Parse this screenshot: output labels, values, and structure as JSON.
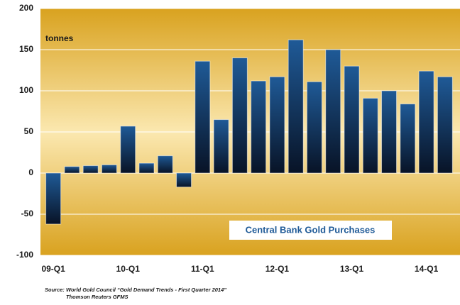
{
  "chart_data": {
    "type": "bar",
    "title": "Central Bank Gold Purchases",
    "ylabel": "tonnes",
    "categories": [
      "09-Q1",
      null,
      null,
      null,
      "10-Q1",
      null,
      null,
      null,
      "11-Q1",
      null,
      null,
      null,
      "12-Q1",
      null,
      null,
      null,
      "13-Q1",
      null,
      null,
      null,
      "14-Q1",
      null
    ],
    "values": [
      -62,
      8,
      9,
      10,
      57,
      12,
      21,
      -17,
      136,
      65,
      140,
      112,
      117,
      162,
      111,
      150,
      130,
      91,
      100,
      84,
      124,
      117
    ],
    "color": "#1f5a97",
    "ylim": [
      -100,
      200
    ],
    "yticks": [
      -100,
      -50,
      0,
      50,
      100,
      150,
      200
    ],
    "grid": true,
    "source": [
      "Source: World Gold Council “Gold Demand Trends - First Quarter 2014”",
      "Thomson Reuters GFMS"
    ]
  }
}
